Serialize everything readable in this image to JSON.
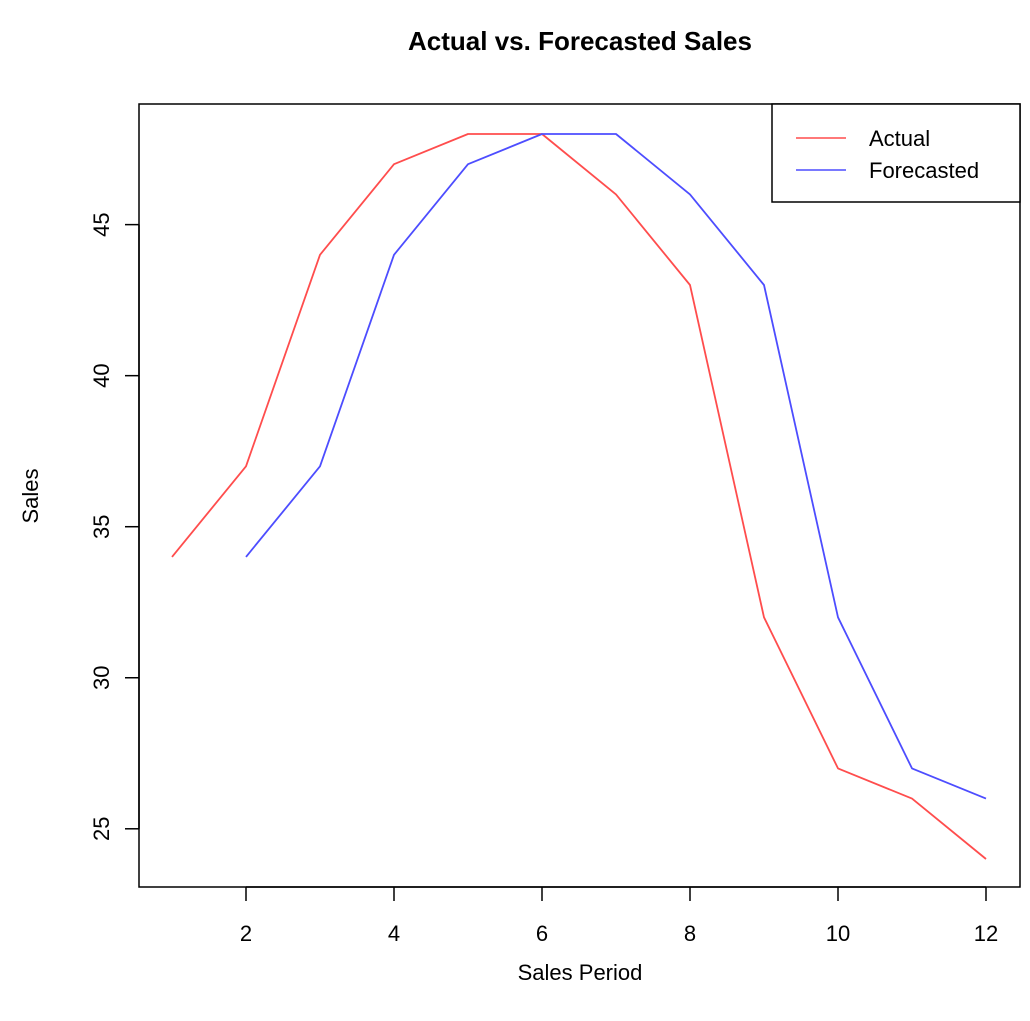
{
  "chart_data": {
    "type": "line",
    "title": "Actual vs. Forecasted Sales",
    "xlabel": "Sales Period",
    "ylabel": "Sales",
    "xlim": [
      1,
      12
    ],
    "ylim": [
      24,
      48
    ],
    "x_ticks": [
      2,
      4,
      6,
      8,
      10,
      12
    ],
    "y_ticks": [
      25,
      30,
      35,
      40,
      45
    ],
    "grid": false,
    "legend_position": "top-right",
    "series": [
      {
        "name": "Actual",
        "color": "#ff4d4d",
        "x": [
          1,
          2,
          3,
          4,
          5,
          6,
          7,
          8,
          9,
          10,
          11,
          12
        ],
        "y": [
          34,
          37,
          44,
          47,
          48,
          48,
          46,
          43,
          32,
          27,
          26,
          24
        ]
      },
      {
        "name": "Forecasted",
        "color": "#4d4dff",
        "x": [
          2,
          3,
          4,
          5,
          6,
          7,
          8,
          9,
          10,
          11,
          12
        ],
        "y": [
          34,
          37,
          44,
          47,
          48,
          48,
          46,
          43,
          32,
          27,
          26
        ]
      }
    ]
  }
}
